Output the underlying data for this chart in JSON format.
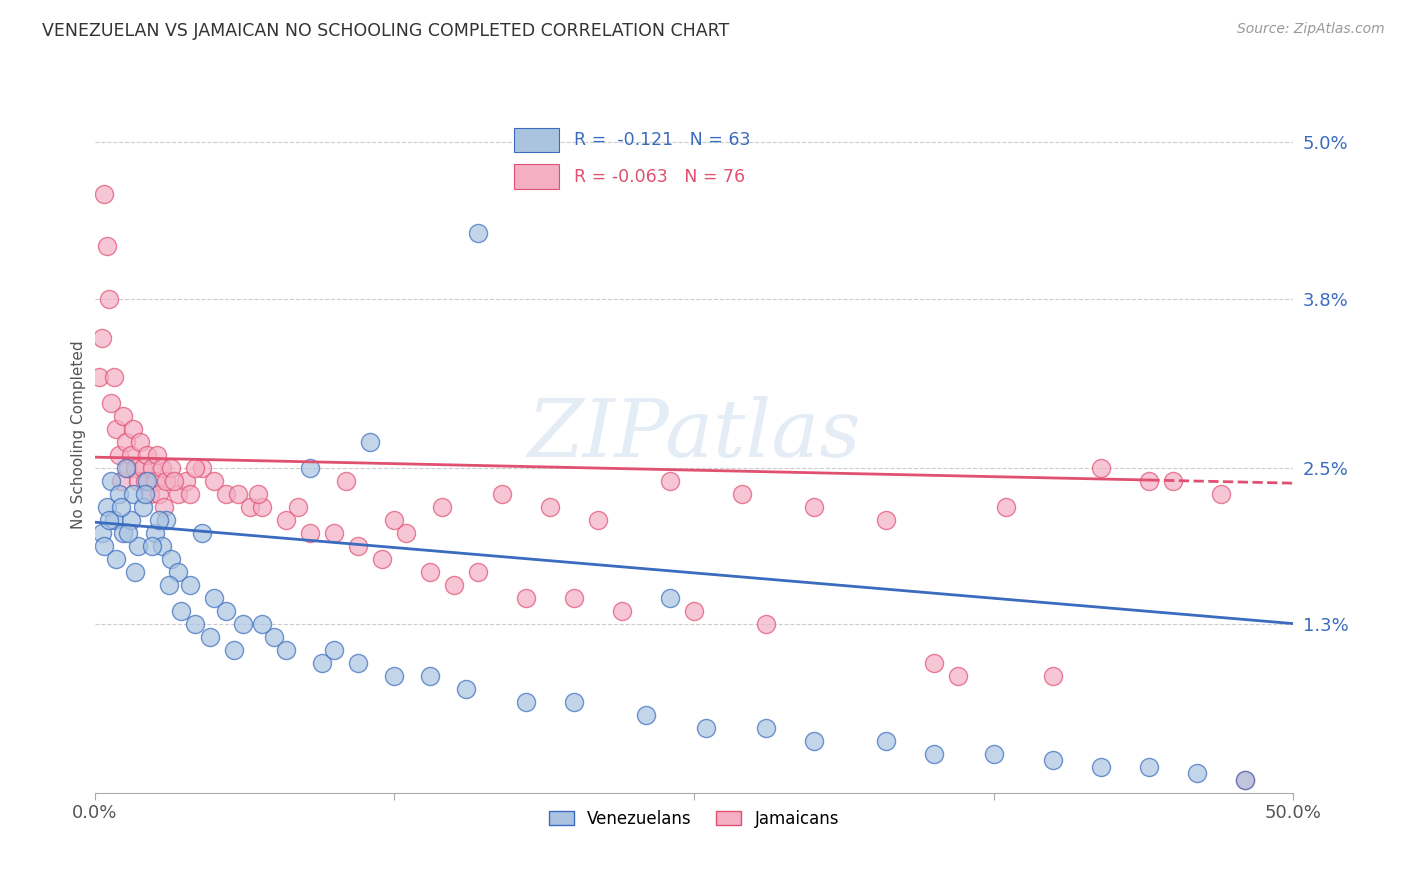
{
  "title": "VENEZUELAN VS JAMAICAN NO SCHOOLING COMPLETED CORRELATION CHART",
  "source": "Source: ZipAtlas.com",
  "ylabel": "No Schooling Completed",
  "yticks": [
    "1.3%",
    "2.5%",
    "3.8%",
    "5.0%"
  ],
  "ytick_vals": [
    1.3,
    2.5,
    3.8,
    5.0
  ],
  "xlim": [
    0.0,
    50.0
  ],
  "ylim": [
    0.0,
    5.5
  ],
  "color_blue": "#aac4e0",
  "color_pink": "#f4afc5",
  "color_line_blue": "#3a6bbf",
  "color_line_pink": "#e05070",
  "watermark": "ZIPatlas",
  "blue_line_x0": 0.0,
  "blue_line_y0": 2.08,
  "blue_line_x1": 50.0,
  "blue_line_y1": 1.3,
  "pink_line_x0": 0.0,
  "pink_line_y0": 2.58,
  "pink_line_x1": 50.0,
  "pink_line_y1": 2.38,
  "pink_dashed_start_x": 44.0,
  "venezuelan_x": [
    0.5,
    0.7,
    0.8,
    1.0,
    1.2,
    1.3,
    1.5,
    1.6,
    1.8,
    2.0,
    2.2,
    2.5,
    2.8,
    3.0,
    3.2,
    3.5,
    4.0,
    4.5,
    5.0,
    5.5,
    0.3,
    0.4,
    0.6,
    0.9,
    1.1,
    1.4,
    1.7,
    2.1,
    2.4,
    2.7,
    3.1,
    3.6,
    4.2,
    4.8,
    5.8,
    6.2,
    7.5,
    8.0,
    9.5,
    10.0,
    11.0,
    12.5,
    14.0,
    15.5,
    18.0,
    20.0,
    23.0,
    25.5,
    28.0,
    30.0,
    33.0,
    35.0,
    37.5,
    40.0,
    42.0,
    44.0,
    46.0,
    48.0,
    24.0,
    11.5,
    7.0,
    9.0,
    16.0
  ],
  "venezuelan_y": [
    2.2,
    2.4,
    2.1,
    2.3,
    2.0,
    2.5,
    2.1,
    2.3,
    1.9,
    2.2,
    2.4,
    2.0,
    1.9,
    2.1,
    1.8,
    1.7,
    1.6,
    2.0,
    1.5,
    1.4,
    2.0,
    1.9,
    2.1,
    1.8,
    2.2,
    2.0,
    1.7,
    2.3,
    1.9,
    2.1,
    1.6,
    1.4,
    1.3,
    1.2,
    1.1,
    1.3,
    1.2,
    1.1,
    1.0,
    1.1,
    1.0,
    0.9,
    0.9,
    0.8,
    0.7,
    0.7,
    0.6,
    0.5,
    0.5,
    0.4,
    0.4,
    0.3,
    0.3,
    0.25,
    0.2,
    0.2,
    0.15,
    0.1,
    1.5,
    2.7,
    1.3,
    2.5,
    4.3
  ],
  "jamaican_x": [
    0.2,
    0.3,
    0.5,
    0.6,
    0.7,
    0.8,
    0.9,
    1.0,
    1.1,
    1.2,
    1.3,
    1.4,
    1.5,
    1.6,
    1.7,
    1.8,
    1.9,
    2.0,
    2.1,
    2.2,
    2.3,
    2.4,
    2.5,
    2.6,
    2.7,
    2.8,
    2.9,
    3.0,
    3.2,
    3.5,
    3.8,
    4.0,
    4.5,
    5.0,
    5.5,
    6.0,
    6.5,
    7.0,
    8.0,
    9.0,
    10.0,
    11.0,
    12.0,
    13.0,
    14.0,
    15.0,
    16.0,
    18.0,
    20.0,
    22.0,
    25.0,
    28.0,
    35.0,
    40.0,
    45.0,
    47.0,
    3.3,
    4.2,
    6.8,
    8.5,
    10.5,
    12.5,
    14.5,
    17.0,
    19.0,
    21.0,
    24.0,
    27.0,
    30.0,
    33.0,
    36.0,
    38.0,
    42.0,
    44.0,
    48.0,
    0.4
  ],
  "jamaican_y": [
    3.2,
    3.5,
    4.2,
    3.8,
    3.0,
    3.2,
    2.8,
    2.6,
    2.4,
    2.9,
    2.7,
    2.5,
    2.6,
    2.8,
    2.5,
    2.4,
    2.7,
    2.5,
    2.4,
    2.6,
    2.3,
    2.5,
    2.4,
    2.6,
    2.3,
    2.5,
    2.2,
    2.4,
    2.5,
    2.3,
    2.4,
    2.3,
    2.5,
    2.4,
    2.3,
    2.3,
    2.2,
    2.2,
    2.1,
    2.0,
    2.0,
    1.9,
    1.8,
    2.0,
    1.7,
    1.6,
    1.7,
    1.5,
    1.5,
    1.4,
    1.4,
    1.3,
    1.0,
    0.9,
    2.4,
    2.3,
    2.4,
    2.5,
    2.3,
    2.2,
    2.4,
    2.1,
    2.2,
    2.3,
    2.2,
    2.1,
    2.4,
    2.3,
    2.2,
    2.1,
    0.9,
    2.2,
    2.5,
    2.4,
    0.1,
    4.6
  ]
}
